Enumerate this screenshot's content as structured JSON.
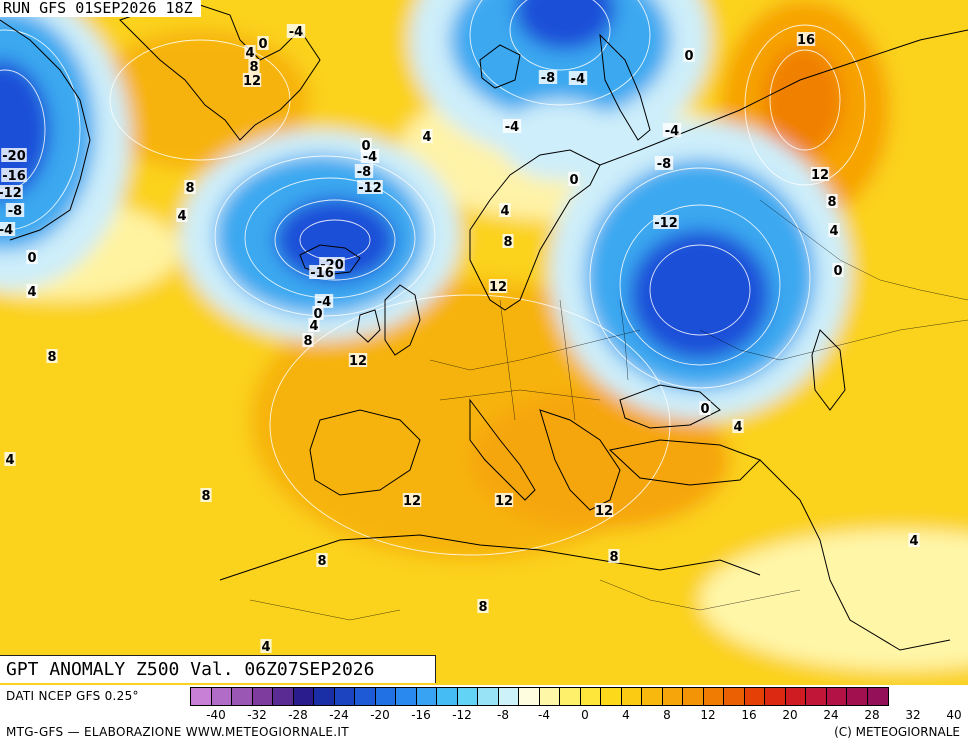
{
  "header": {
    "run_label": "RUN GFS 01SEP2026 18Z"
  },
  "map": {
    "title": "GPT ANOMALY Z500 Val. 06Z07SEP2026",
    "contour_labels": [
      "0",
      "-4",
      "4",
      "8",
      "12",
      "-4",
      "-8",
      "0",
      "16",
      "-4",
      "-4",
      "4",
      "-20",
      "-16",
      "-12",
      "-8",
      "-4",
      "0",
      "-4",
      "-8",
      "-12",
      "0",
      "-8",
      "12",
      "8",
      "8",
      "-12",
      "4",
      "4",
      "8",
      "-20",
      "-16",
      "0",
      "4",
      "-4",
      "0",
      "4",
      "8",
      "12",
      "12",
      "4",
      "0",
      "8",
      "8",
      "12",
      "0",
      "4",
      "12",
      "12",
      "4",
      "8",
      "8",
      "8",
      "4",
      "4"
    ],
    "colors": {
      "deep_negative": "#1f4fd8",
      "negative": "#3aa8f0",
      "near_zero": "#cdeefa",
      "neutral": "#fff6a8",
      "positive": "#fbd21a",
      "strong_positive": "#f7a300",
      "peak_positive": "#f08000",
      "coastline": "#000000"
    }
  },
  "footer": {
    "data_source": "DATI NCEP GFS 0.25°",
    "credits": "MTG-GFS — ELABORAZIONE WWW.METEOGIORNALE.IT",
    "copyright": "(C) METEOGIORNALE",
    "colorbar": {
      "swatches": [
        "#c87fd6",
        "#b06cc6",
        "#9a57b4",
        "#7f3c9f",
        "#5a2b92",
        "#2b1c8e",
        "#1a2ea6",
        "#1c43c0",
        "#1e5ad6",
        "#2170e4",
        "#2a89ee",
        "#37a3f2",
        "#45bcf3",
        "#63d3f5",
        "#99e3f6",
        "#cdf2fa",
        "#fffde0",
        "#fff7a8",
        "#fff06c",
        "#ffe63a",
        "#fdd91c",
        "#fbcb14",
        "#f8b80e",
        "#f6a60a",
        "#f39306",
        "#f07c04",
        "#ec6004",
        "#e54006",
        "#dc2a12",
        "#cf1c22",
        "#c11638",
        "#b31246",
        "#a31050",
        "#941058"
      ],
      "tick_labels": [
        "-40",
        "-32",
        "-28",
        "-24",
        "-20",
        "-16",
        "-12",
        "-8",
        "-4",
        "0",
        "4",
        "8",
        "12",
        "16",
        "20",
        "24",
        "28",
        "32",
        "40"
      ]
    }
  }
}
